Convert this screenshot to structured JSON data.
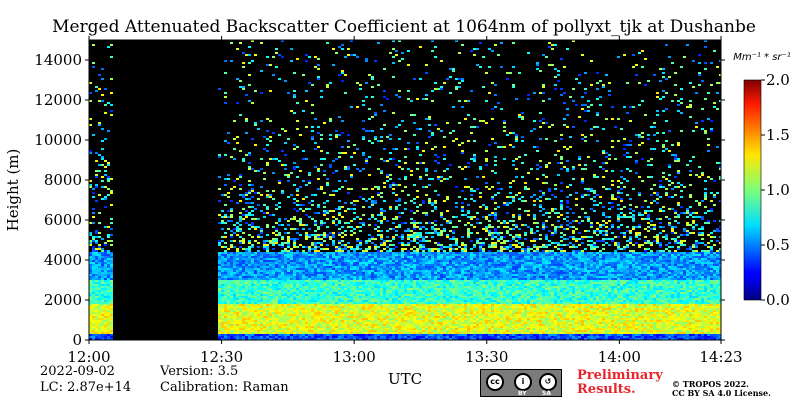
{
  "title": "Merged Attenuated Backscatter Coefficient at 1064nm of pollyxt_tjk at Dushanbe",
  "footer": {
    "date": "2022-09-02",
    "lc": "LC: 2.87e+14",
    "version": "Version: 3.5",
    "calibration": "Calibration: Raman",
    "prelim_line1": "Preliminary",
    "prelim_line2": "Results.",
    "copyright_line1": "© TROPOS 2022.",
    "copyright_line2": "CC BY SA 4.0 License.",
    "license_badge": {
      "by": "BY",
      "sa": "SA"
    }
  },
  "chart_data": {
    "type": "heatmap",
    "title": "Merged Attenuated Backscatter Coefficient at 1064nm of pollyxt_tjk at Dushanbe",
    "xlabel": "UTC",
    "ylabel": "Height (m)",
    "x_ticks": [
      "12:00",
      "12:30",
      "13:00",
      "13:30",
      "14:00",
      "14:23"
    ],
    "y_ticks": [
      "0",
      "2000",
      "4000",
      "6000",
      "8000",
      "10000",
      "12000",
      "14000"
    ],
    "x_range": [
      "12:00",
      "14:23"
    ],
    "y_range": [
      0,
      15000
    ],
    "colorbar": {
      "unit": "Mm⁻¹ * sr⁻¹",
      "ticks": [
        "0.0",
        "0.5",
        "1.0",
        "1.5",
        "2.0"
      ],
      "range": [
        0,
        2.0
      ],
      "colormap": "jet"
    },
    "no_data_periods": [
      {
        "start": "12:05",
        "end": "12:29"
      }
    ],
    "layers": [
      {
        "name_hint": "surface layer",
        "base_m": 0,
        "top_m": 300,
        "value": 0.4
      },
      {
        "name_hint": "boundary layer",
        "base_m": 300,
        "top_m": 1800,
        "value": 1.2
      },
      {
        "name_hint": "elevated layer",
        "base_m": 1800,
        "top_m": 3000,
        "value": 0.85
      },
      {
        "name_hint": "upper aerosol",
        "base_m": 3000,
        "top_m": 4400,
        "value": 0.55
      },
      {
        "name_hint": "free troposphere noise",
        "base_m": 4400,
        "top_m": 15000,
        "value": 0.05
      }
    ]
  }
}
